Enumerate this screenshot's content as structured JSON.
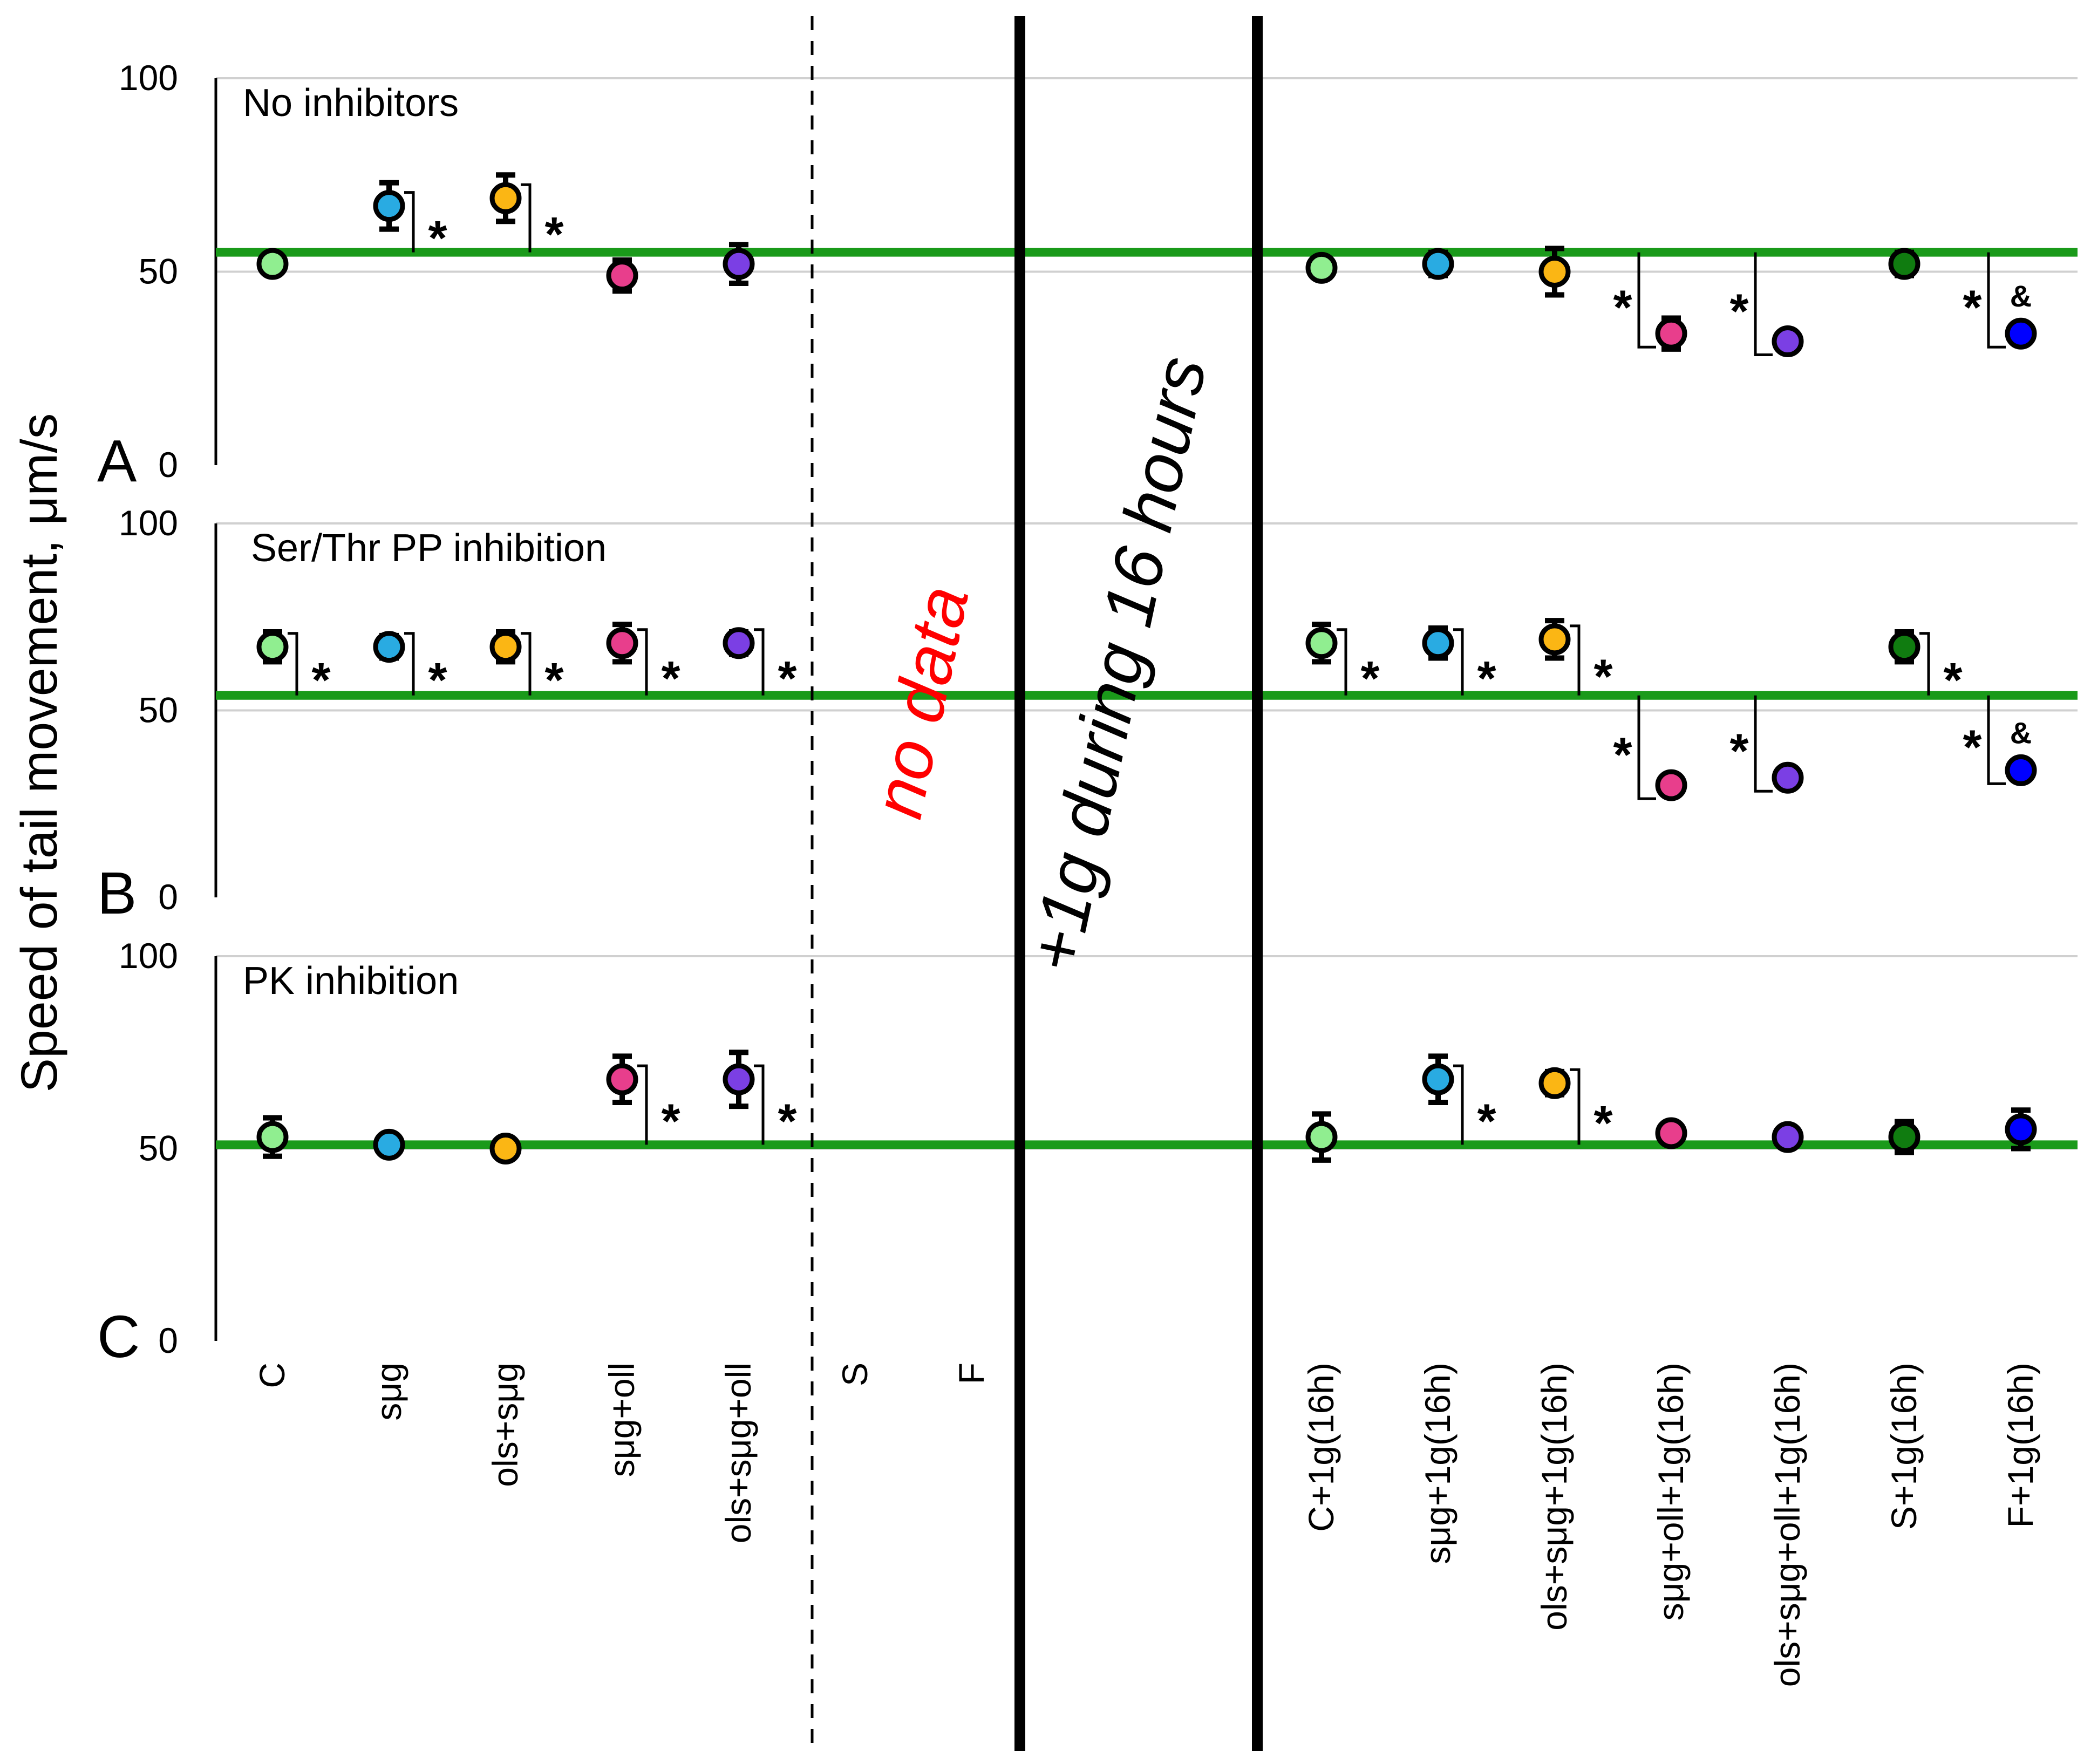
{
  "chart_data": {
    "type": "scatter",
    "y_axis_label": "Speed of tail movement, μm/s",
    "categories": [
      "C",
      "sμg",
      "ols+sμg",
      "sμg+oll",
      "ols+sμg+oll",
      "S",
      "F",
      "",
      "",
      "C+1g(16h)",
      "sμg+1g(16h)",
      "ols+sμg+1g(16h)",
      "sμg+oll+1g(16h)",
      "ols+sμg+oll+1g(16h)",
      "S+1g(16h)",
      "F+1g(16h)"
    ],
    "colors": [
      "#90ee90",
      "#29abe2",
      "#fbb614",
      "#e83e8c",
      "#7b3fe4",
      "#107c10",
      "#0000ff"
    ],
    "reference_color": "#1a9a1a",
    "annotations": {
      "no_data": "no data",
      "gravity": "+1g during 16 hours",
      "no_data_color": "#ff0000"
    },
    "panels": [
      {
        "letter": "A",
        "title": "No inhibitors",
        "ylim": [
          0,
          100
        ],
        "yticks": [
          0,
          50,
          100
        ],
        "reference": 55,
        "points": [
          {
            "cat": 0,
            "value": 52,
            "err": 0,
            "color": 0
          },
          {
            "cat": 1,
            "value": 67,
            "err": 6,
            "color": 1,
            "mark": "*"
          },
          {
            "cat": 2,
            "value": 69,
            "err": 6,
            "color": 2,
            "mark": "*"
          },
          {
            "cat": 3,
            "value": 49,
            "err": 4,
            "color": 3
          },
          {
            "cat": 4,
            "value": 52,
            "err": 5,
            "color": 4
          },
          {
            "cat": 9,
            "value": 51,
            "err": 0,
            "color": 0
          },
          {
            "cat": 10,
            "value": 52,
            "err": 3,
            "color": 1
          },
          {
            "cat": 11,
            "value": 50,
            "err": 6,
            "color": 2
          },
          {
            "cat": 12,
            "value": 34,
            "err": 4,
            "color": 3,
            "mark": "*"
          },
          {
            "cat": 13,
            "value": 32,
            "err": 0,
            "color": 4,
            "mark": "*"
          },
          {
            "cat": 14,
            "value": 52,
            "err": 3,
            "color": 5
          },
          {
            "cat": 15,
            "value": 34,
            "err": 0,
            "color": 6,
            "mark": "*",
            "mark2": "&"
          }
        ]
      },
      {
        "letter": "B",
        "title": "Ser/Thr PP inhibition",
        "ylim": [
          0,
          100
        ],
        "yticks": [
          0,
          50,
          100
        ],
        "reference": 54,
        "points": [
          {
            "cat": 0,
            "value": 67,
            "err": 4,
            "color": 0,
            "mark": "*"
          },
          {
            "cat": 1,
            "value": 67,
            "err": 3,
            "color": 1,
            "mark": "*"
          },
          {
            "cat": 2,
            "value": 67,
            "err": 4,
            "color": 2,
            "mark": "*"
          },
          {
            "cat": 3,
            "value": 68,
            "err": 5,
            "color": 3,
            "mark": "*"
          },
          {
            "cat": 4,
            "value": 68,
            "err": 3,
            "color": 4,
            "mark": "*"
          },
          {
            "cat": 9,
            "value": 68,
            "err": 5,
            "color": 0,
            "mark": "*"
          },
          {
            "cat": 10,
            "value": 68,
            "err": 4,
            "color": 1,
            "mark": "*"
          },
          {
            "cat": 11,
            "value": 69,
            "err": 5,
            "color": 2,
            "mark": "*"
          },
          {
            "cat": 12,
            "value": 30,
            "err": 0,
            "color": 3,
            "mark": "*"
          },
          {
            "cat": 13,
            "value": 32,
            "err": 0,
            "color": 4,
            "mark": "*"
          },
          {
            "cat": 14,
            "value": 67,
            "err": 4,
            "color": 5,
            "mark": "*"
          },
          {
            "cat": 15,
            "value": 34,
            "err": 0,
            "color": 6,
            "mark": "*",
            "mark2": "&"
          }
        ]
      },
      {
        "letter": "C",
        "title": "PK inhibition",
        "ylim": [
          0,
          100
        ],
        "yticks": [
          0,
          50,
          100
        ],
        "reference": 51,
        "points": [
          {
            "cat": 0,
            "value": 53,
            "err": 5,
            "color": 0
          },
          {
            "cat": 1,
            "value": 51,
            "err": 0,
            "color": 1
          },
          {
            "cat": 2,
            "value": 50,
            "err": 0,
            "color": 2
          },
          {
            "cat": 3,
            "value": 68,
            "err": 6,
            "color": 3,
            "mark": "*"
          },
          {
            "cat": 4,
            "value": 68,
            "err": 7,
            "color": 4,
            "mark": "*"
          },
          {
            "cat": 9,
            "value": 53,
            "err": 6,
            "color": 0
          },
          {
            "cat": 10,
            "value": 68,
            "err": 6,
            "color": 1,
            "mark": "*"
          },
          {
            "cat": 11,
            "value": 67,
            "err": 3,
            "color": 2,
            "mark": "*"
          },
          {
            "cat": 12,
            "value": 54,
            "err": 0,
            "color": 3
          },
          {
            "cat": 13,
            "value": 53,
            "err": 0,
            "color": 4
          },
          {
            "cat": 14,
            "value": 53,
            "err": 4,
            "color": 5
          },
          {
            "cat": 15,
            "value": 55,
            "err": 5,
            "color": 6
          }
        ]
      }
    ]
  }
}
